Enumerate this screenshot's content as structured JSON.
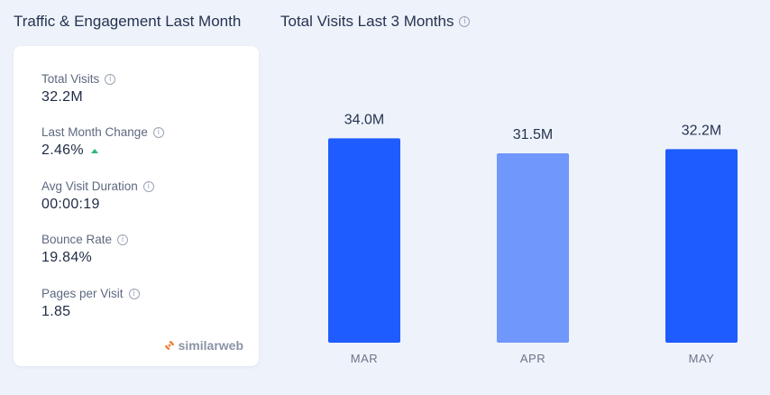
{
  "left_panel": {
    "title": "Traffic & Engagement Last Month",
    "metrics": [
      {
        "label": "Total Visits",
        "value": "32.2M",
        "info_icon": "info-icon"
      },
      {
        "label": "Last Month Change",
        "value": "2.46%",
        "trend": "up",
        "trend_color": "#2eb67d",
        "info_icon": "info-icon"
      },
      {
        "label": "Avg Visit Duration",
        "value": "00:00:19",
        "info_icon": "info-icon"
      },
      {
        "label": "Bounce Rate",
        "value": "19.84%",
        "info_icon": "info-icon"
      },
      {
        "label": "Pages per Visit",
        "value": "1.85",
        "info_icon": "info-icon"
      }
    ],
    "brand": "similarweb"
  },
  "colors": {
    "bar_primary": "#1f5cff",
    "bar_light": "#7097fb",
    "trend_up": "#2eb67d"
  },
  "chart_data": {
    "type": "bar",
    "title": "Total Visits Last 3 Months",
    "categories": [
      "MAR",
      "APR",
      "MAY"
    ],
    "values": [
      34.0,
      31.5,
      32.2
    ],
    "value_labels": [
      "34.0M",
      "31.5M",
      "32.2M"
    ],
    "bar_colors": [
      "#1f5cff",
      "#7097fb",
      "#1f5cff"
    ],
    "ylim": [
      0,
      36
    ],
    "grid": false,
    "xlabel": "",
    "ylabel": ""
  }
}
